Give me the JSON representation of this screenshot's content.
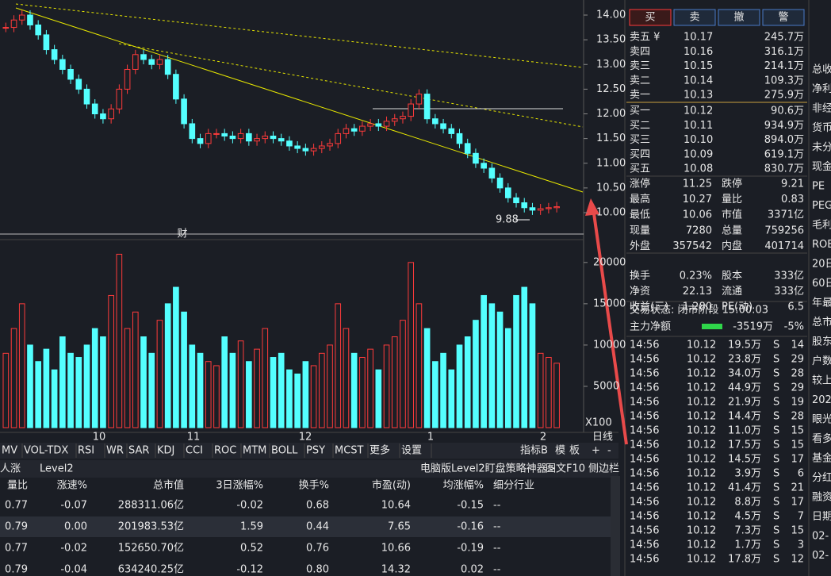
{
  "price_chart": {
    "type": "candlestick",
    "ylim": [
      9.8,
      14.3
    ],
    "yticks": [
      {
        "value": 10,
        "label": "10.00"
      },
      {
        "value": 10.5,
        "label": "10.50"
      },
      {
        "value": 11,
        "label": "11.00"
      },
      {
        "value": 11.5,
        "label": "11.50"
      },
      {
        "value": 12,
        "label": "12.00"
      },
      {
        "value": 12.5,
        "label": "12.50"
      },
      {
        "value": 13,
        "label": "13.00"
      },
      {
        "value": 13.5,
        "label": "13.50"
      },
      {
        "value": 14,
        "label": "14.00"
      }
    ],
    "closes": [
      13.75,
      13.9,
      14.0,
      13.8,
      13.6,
      13.3,
      13.1,
      12.9,
      12.7,
      12.5,
      12.2,
      12.0,
      11.9,
      12.1,
      12.5,
      12.9,
      13.2,
      13.1,
      13.0,
      13.1,
      12.8,
      12.3,
      11.8,
      11.5,
      11.4,
      11.6,
      11.6,
      11.55,
      11.5,
      11.6,
      11.45,
      11.5,
      11.55,
      11.5,
      11.45,
      11.35,
      11.3,
      11.25,
      11.3,
      11.35,
      11.4,
      11.6,
      11.7,
      11.65,
      11.75,
      11.8,
      11.75,
      11.85,
      11.9,
      11.95,
      12.2,
      12.4,
      11.9,
      11.8,
      11.7,
      11.6,
      11.4,
      11.2,
      11.0,
      10.9,
      10.7,
      10.5,
      10.3,
      10.2,
      10.1,
      10.05,
      10.08,
      10.1,
      10.12
    ],
    "volumes": [
      9000,
      12000,
      15000,
      10000,
      8000,
      9500,
      7000,
      11000,
      9000,
      8500,
      10000,
      12000,
      11000,
      16000,
      21000,
      12000,
      14000,
      11000,
      9000,
      13000,
      15000,
      17000,
      14000,
      10000,
      9000,
      8000,
      7500,
      11000,
      9000,
      10500,
      8000,
      9500,
      12000,
      8500,
      9000,
      7000,
      6500,
      8000,
      7500,
      9000,
      10000,
      15000,
      12000,
      9000,
      8500,
      9500,
      7000,
      10000,
      11000,
      13000,
      20000,
      15000,
      12000,
      8000,
      9000,
      7000,
      10000,
      11000,
      13000,
      16000,
      15000,
      14000,
      12000,
      16000,
      17000,
      15000,
      9000,
      8500,
      7800
    ],
    "vol_ylim": [
      0,
      22000
    ],
    "vol_yticks": [
      5000,
      10000,
      15000,
      20000
    ],
    "vol_unit": "X100",
    "x_labels": [
      "10",
      "11",
      "12",
      "1",
      "2"
    ],
    "annotation": "9.88",
    "marker": "财",
    "period": "日线"
  },
  "tabs": [
    "MV",
    "VOL-TDX",
    "RSI",
    "WR",
    "SAR",
    "KDJ",
    "CCI",
    "ROC",
    "MTM",
    "BOLL",
    "PSY",
    "MCST",
    "更多",
    "设置"
  ],
  "tab_right": [
    "指标B",
    "模",
    "板",
    "+",
    "-"
  ],
  "bar2": {
    "left": [
      "人涨",
      "Level2"
    ],
    "ad": "电脑版Level2盯盘策略神器>",
    "btns": [
      "图文F10",
      "侧边栏"
    ]
  },
  "table": {
    "header": [
      "量比",
      "涨速%",
      "总市值",
      "3日涨幅%",
      "换手%",
      "市盈(动)",
      "均涨幅%",
      "细分行业"
    ],
    "rows": [
      [
        "0.77",
        "-0.07",
        "288311.06亿",
        "-0.02",
        "0.68",
        "10.64",
        "-0.15",
        "--"
      ],
      [
        "0.79",
        "0.00",
        "201983.53亿",
        "1.59",
        "0.44",
        "7.65",
        "-0.16",
        "--"
      ],
      [
        "0.77",
        "-0.02",
        "152650.70亿",
        "0.52",
        "0.76",
        "10.66",
        "-0.19",
        "--"
      ],
      [
        "0.79",
        "-0.04",
        "634240.25亿",
        "-0.12",
        "0.80",
        "14.32",
        "0.02",
        "--"
      ]
    ]
  },
  "buttons": [
    "买",
    "卖",
    "撤",
    "警"
  ],
  "asks": [
    [
      "卖五 ¥",
      "10.17",
      "245.7万"
    ],
    [
      "卖四",
      "10.16",
      "316.1万"
    ],
    [
      "卖三",
      "10.15",
      "214.1万"
    ],
    [
      "卖二",
      "10.14",
      "109.3万"
    ],
    [
      "卖一",
      "10.13",
      "275.9万"
    ]
  ],
  "bids": [
    [
      "买一",
      "10.12",
      "90.6万"
    ],
    [
      "买二",
      "10.11",
      "934.9万"
    ],
    [
      "买三",
      "10.10",
      "894.0万"
    ],
    [
      "买四",
      "10.09",
      "619.1万"
    ],
    [
      "买五",
      "10.08",
      "830.7万"
    ]
  ],
  "stats": [
    [
      "涨停",
      "11.25",
      "#ff3b3b",
      "跌停",
      "9.21",
      "#2fd64a"
    ],
    [
      "最高",
      "10.27",
      "#ff3b3b",
      "量比",
      "0.83",
      "#2fd64a"
    ],
    [
      "最低",
      "10.06",
      "#2fd64a",
      "市值",
      "3371亿",
      "#e8e8e8"
    ],
    [
      "现量",
      "7280",
      "#b040ff",
      "总量",
      "759256",
      "#e8e8e8"
    ],
    [
      "外盘",
      "357542",
      "#ff3b3b",
      "内盘",
      "401714",
      "#2fd64a"
    ],
    [
      "换手",
      "0.23%",
      "#e8e8e8",
      "股本",
      "333亿",
      "#e8e8e8"
    ],
    [
      "净资",
      "22.13",
      "#e8e8e8",
      "流通",
      "333亿",
      "#e8e8e8"
    ],
    [
      "收益(三)",
      "1.280",
      "#e8e8e8",
      "PE(动)",
      "6.5",
      "#e8e8e8"
    ]
  ],
  "status": "交易状态: 闭市阶段 15:00:03",
  "flow": {
    "label": "主力净额",
    "value": "-3519万",
    "pct": "-5%"
  },
  "trades": [
    [
      "14:56",
      "10.12",
      "19.5万",
      "S",
      "14"
    ],
    [
      "14:56",
      "10.12",
      "23.8万",
      "S",
      "29"
    ],
    [
      "14:56",
      "10.12",
      "34.0万",
      "S",
      "28"
    ],
    [
      "14:56",
      "10.12",
      "44.9万",
      "S",
      "29"
    ],
    [
      "14:56",
      "10.12",
      "21.9万",
      "S",
      "19"
    ],
    [
      "14:56",
      "10.12",
      "14.4万",
      "S",
      "28"
    ],
    [
      "14:56",
      "10.12",
      "11.0万",
      "S",
      "15"
    ],
    [
      "14:56",
      "10.12",
      "17.5万",
      "S",
      "15"
    ],
    [
      "14:56",
      "10.12",
      "14.5万",
      "S",
      "17"
    ],
    [
      "14:56",
      "10.12",
      "3.9万",
      "S",
      "6"
    ],
    [
      "14:56",
      "10.12",
      "41.4万",
      "S",
      "21"
    ],
    [
      "14:56",
      "10.12",
      "8.8万",
      "S",
      "17"
    ],
    [
      "14:56",
      "10.12",
      "4.5万",
      "S",
      "7"
    ],
    [
      "14:56",
      "10.12",
      "7.3万",
      "S",
      "15"
    ],
    [
      "14:56",
      "10.12",
      "1.7万",
      "S",
      "3"
    ],
    [
      "14:56",
      "10.12",
      "17.8万",
      "S",
      "12"
    ]
  ],
  "side": [
    "总收",
    "净利",
    "非经",
    "货币",
    "未分",
    "现金",
    "PE",
    "PEG",
    "毛利",
    "ROE",
    "20日",
    "60日",
    "年最",
    "总市",
    "股东",
    "户数",
    "较上",
    "202",
    "眼光",
    "看多",
    "基金",
    "分红",
    "融资",
    "日期",
    "02-",
    "02-"
  ]
}
